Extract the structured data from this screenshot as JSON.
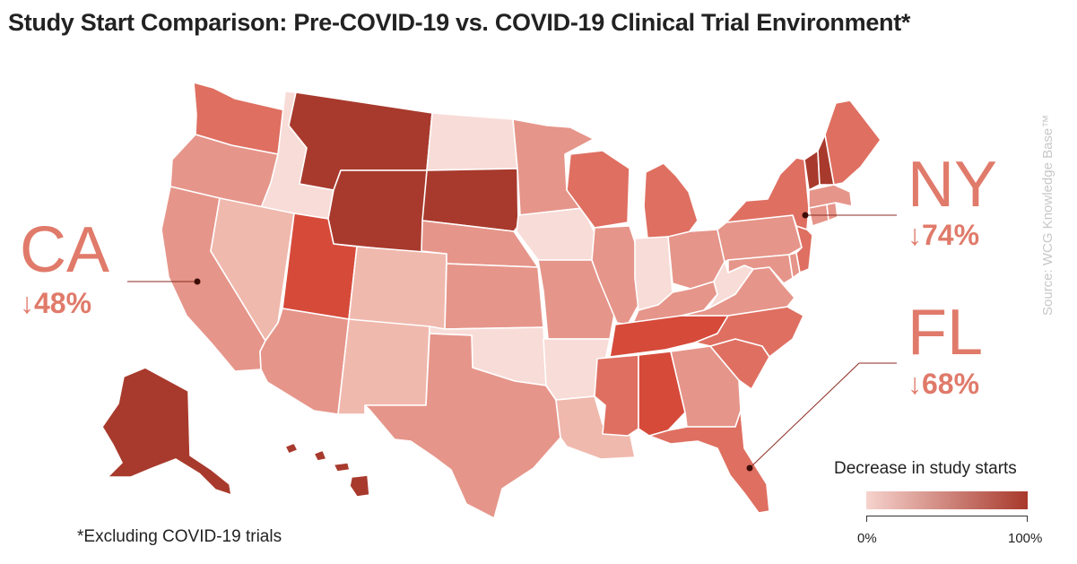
{
  "title": "Study Start Comparison: Pre-COVID-19 vs. COVID-19 Clinical Trial Environment*",
  "source": "Source: WCG Knowledge Base™",
  "footnote": "*Excluding COVID-19 trials",
  "callouts": {
    "ca": {
      "abbr": "CA",
      "value": "↓48%"
    },
    "ny": {
      "abbr": "NY",
      "value": "↓74%"
    },
    "fl": {
      "abbr": "FL",
      "value": "↓68%"
    }
  },
  "legend": {
    "title": "Decrease in study starts",
    "min_label": "0%",
    "max_label": "100%",
    "color_low": "#f6d3cd",
    "color_high": "#a8392c"
  },
  "colors": {
    "very_light": "#f8dcd7",
    "light": "#f0b9ae",
    "medium": "#e6958a",
    "medium_dark": "#df6f61",
    "bright": "#d64a3a",
    "dark": "#a83a2d",
    "callout": "#e07a6a"
  },
  "map_values": {
    "WA": "medium_dark",
    "OR": "medium",
    "CA": "medium",
    "ID": "very_light",
    "NV": "light",
    "MT": "dark",
    "WY": "dark",
    "UT": "bright",
    "AZ": "medium",
    "CO": "light",
    "NM": "light",
    "ND": "very_light",
    "SD": "dark",
    "NE": "medium",
    "KS": "medium",
    "OK": "very_light",
    "TX": "medium",
    "MN": "medium",
    "IA": "very_light",
    "MO": "medium",
    "AR": "very_light",
    "LA": "light",
    "WI": "medium_dark",
    "IL": "medium",
    "MI": "medium_dark",
    "IN": "very_light",
    "OH": "medium",
    "KY": "medium",
    "TN": "bright",
    "MS": "medium_dark",
    "AL": "bright",
    "GA": "medium",
    "FL": "medium_dark",
    "SC": "medium_dark",
    "NC": "medium_dark",
    "VA": "medium",
    "WV": "very_light",
    "PA": "medium",
    "NY": "medium_dark",
    "NJ": "medium_dark",
    "MD": "medium",
    "DE": "medium",
    "CT": "medium",
    "RI": "medium",
    "MA": "medium",
    "VT": "dark",
    "NH": "dark",
    "ME": "medium_dark",
    "AK": "dark",
    "HI": "dark"
  }
}
